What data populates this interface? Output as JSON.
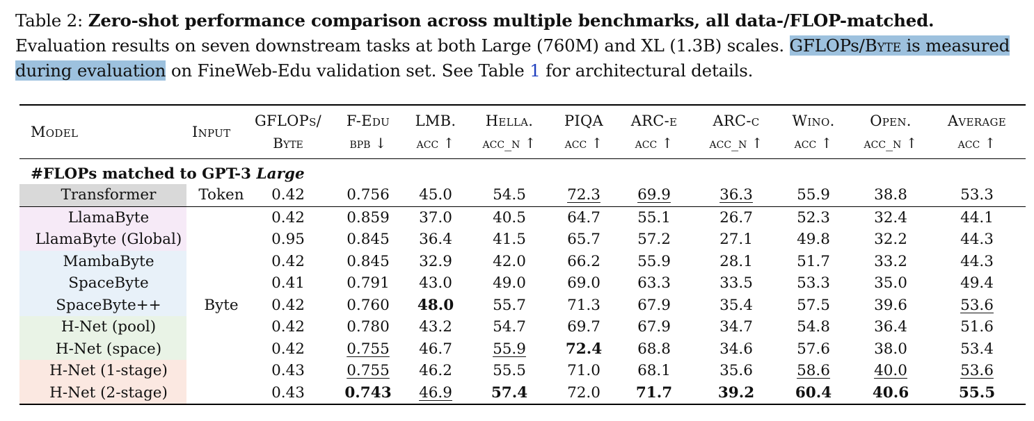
{
  "caption": {
    "label": "Table 2:",
    "title": "Zero-shot performance comparison across multiple benchmarks, all data-/FLOP-matched.",
    "text1": "Evaluation results on seven downstream tasks at both Large (760M) and XL (1.3B) scales.",
    "highlight_a": "GFLOPs/",
    "highlight_b": "Byte",
    "highlight_c": "is measured during evaluation",
    "text2": "on FineWeb-Edu validation set. See Table",
    "table_ref": "1",
    "text3": "for architectural details."
  },
  "header": {
    "model": "Model",
    "input": "Input",
    "columns": [
      {
        "top": "GFLOPs/",
        "bottom": "Byte"
      },
      {
        "top": "F-Edu",
        "bottom": "bpb ↓"
      },
      {
        "top": "LMB.",
        "bottom": "acc ↑"
      },
      {
        "top": "Hella.",
        "bottom": "acc_n ↑"
      },
      {
        "top": "PIQA",
        "bottom": "acc ↑"
      },
      {
        "top": "ARC-e",
        "bottom": "acc ↑"
      },
      {
        "top": "ARC-c",
        "bottom": "acc_n ↑"
      },
      {
        "top": "Wino.",
        "bottom": "acc ↑"
      },
      {
        "top": "Open.",
        "bottom": "acc_n ↑"
      },
      {
        "top": "Average",
        "bottom": "acc ↑"
      }
    ]
  },
  "section": {
    "prefix": "#FLOPs matched to GPT-3",
    "scale": "Large"
  },
  "baseline": {
    "model": "Transformer",
    "input": "Token",
    "color": "#d9d9d9",
    "cells": [
      {
        "v": "0.42"
      },
      {
        "v": "0.756"
      },
      {
        "v": "45.0"
      },
      {
        "v": "54.5"
      },
      {
        "v": "72.3",
        "s": "u"
      },
      {
        "v": "69.9",
        "s": "u"
      },
      {
        "v": "36.3",
        "s": "u"
      },
      {
        "v": "55.9"
      },
      {
        "v": "38.8"
      },
      {
        "v": "53.3"
      }
    ]
  },
  "byte_input_label": "Byte",
  "rows": [
    {
      "model": "LlamaByte",
      "color": "#f6eaf7",
      "cells": [
        {
          "v": "0.42"
        },
        {
          "v": "0.859"
        },
        {
          "v": "37.0"
        },
        {
          "v": "40.5"
        },
        {
          "v": "64.7"
        },
        {
          "v": "55.1"
        },
        {
          "v": "26.7"
        },
        {
          "v": "52.3"
        },
        {
          "v": "32.4"
        },
        {
          "v": "44.1"
        }
      ]
    },
    {
      "model": "LlamaByte (Global)",
      "color": "#f6eaf7",
      "cells": [
        {
          "v": "0.95"
        },
        {
          "v": "0.845"
        },
        {
          "v": "36.4"
        },
        {
          "v": "41.5"
        },
        {
          "v": "65.7"
        },
        {
          "v": "57.2"
        },
        {
          "v": "27.1"
        },
        {
          "v": "49.8"
        },
        {
          "v": "32.2"
        },
        {
          "v": "44.3"
        }
      ]
    },
    {
      "model": "MambaByte",
      "color": "#e8f1f9",
      "cells": [
        {
          "v": "0.42"
        },
        {
          "v": "0.845"
        },
        {
          "v": "32.9"
        },
        {
          "v": "42.0"
        },
        {
          "v": "66.2"
        },
        {
          "v": "55.9"
        },
        {
          "v": "28.1"
        },
        {
          "v": "51.7"
        },
        {
          "v": "33.2"
        },
        {
          "v": "44.3"
        }
      ]
    },
    {
      "model": "SpaceByte",
      "color": "#e8f1f9",
      "cells": [
        {
          "v": "0.41"
        },
        {
          "v": "0.791"
        },
        {
          "v": "43.0"
        },
        {
          "v": "49.0"
        },
        {
          "v": "69.0"
        },
        {
          "v": "63.3"
        },
        {
          "v": "33.5"
        },
        {
          "v": "53.3"
        },
        {
          "v": "35.0"
        },
        {
          "v": "49.4"
        }
      ]
    },
    {
      "model": "SpaceByte++",
      "color": "#e8f1f9",
      "cells": [
        {
          "v": "0.42"
        },
        {
          "v": "0.760"
        },
        {
          "v": "48.0",
          "s": "b"
        },
        {
          "v": "55.7"
        },
        {
          "v": "71.3"
        },
        {
          "v": "67.9"
        },
        {
          "v": "35.4"
        },
        {
          "v": "57.5"
        },
        {
          "v": "39.6"
        },
        {
          "v": "53.6",
          "s": "u"
        }
      ]
    },
    {
      "model": "H-Net (pool)",
      "color": "#e9f3e6",
      "cells": [
        {
          "v": "0.42"
        },
        {
          "v": "0.780"
        },
        {
          "v": "43.2"
        },
        {
          "v": "54.7"
        },
        {
          "v": "69.7"
        },
        {
          "v": "67.9"
        },
        {
          "v": "34.7"
        },
        {
          "v": "54.8"
        },
        {
          "v": "36.4"
        },
        {
          "v": "51.6"
        }
      ]
    },
    {
      "model": "H-Net (space)",
      "color": "#e9f3e6",
      "cells": [
        {
          "v": "0.42"
        },
        {
          "v": "0.755",
          "s": "u"
        },
        {
          "v": "46.7"
        },
        {
          "v": "55.9",
          "s": "u"
        },
        {
          "v": "72.4",
          "s": "b"
        },
        {
          "v": "68.8"
        },
        {
          "v": "34.6"
        },
        {
          "v": "57.6"
        },
        {
          "v": "38.0"
        },
        {
          "v": "53.4"
        }
      ]
    },
    {
      "model": "H-Net (1-stage)",
      "color": "#fbe8e1",
      "cells": [
        {
          "v": "0.43"
        },
        {
          "v": "0.755",
          "s": "u"
        },
        {
          "v": "46.2"
        },
        {
          "v": "55.5"
        },
        {
          "v": "71.0"
        },
        {
          "v": "68.1"
        },
        {
          "v": "35.6"
        },
        {
          "v": "58.6",
          "s": "u"
        },
        {
          "v": "40.0",
          "s": "u"
        },
        {
          "v": "53.6",
          "s": "u"
        }
      ]
    },
    {
      "model": "H-Net (2-stage)",
      "color": "#fbe8e1",
      "cells": [
        {
          "v": "0.43"
        },
        {
          "v": "0.743",
          "s": "b"
        },
        {
          "v": "46.9",
          "s": "u"
        },
        {
          "v": "57.4",
          "s": "b"
        },
        {
          "v": "72.0"
        },
        {
          "v": "71.7",
          "s": "b"
        },
        {
          "v": "39.2",
          "s": "b"
        },
        {
          "v": "60.4",
          "s": "b"
        },
        {
          "v": "40.6",
          "s": "b"
        },
        {
          "v": "55.5",
          "s": "b"
        }
      ]
    }
  ]
}
